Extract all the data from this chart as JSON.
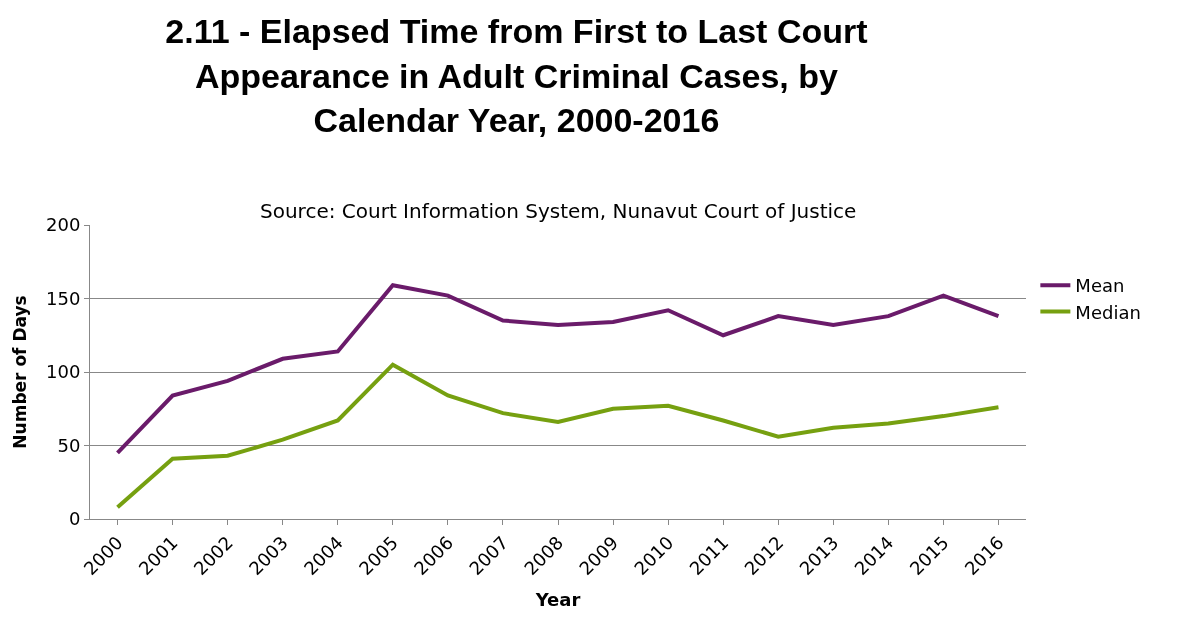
{
  "chart_data": {
    "type": "line",
    "title": "2.11 - Elapsed Time from First to Last Court Appearance in Adult Criminal Cases, by Calendar Year, 2000-2016",
    "annotations": [
      "Source: Court Information System, Nunavut Court of Justice"
    ],
    "xlabel": "Year",
    "ylabel": "Number of Days",
    "categories": [
      "2000",
      "2001",
      "2002",
      "2003",
      "2004",
      "2005",
      "2006",
      "2007",
      "2008",
      "2009",
      "2010",
      "2011",
      "2012",
      "2013",
      "2014",
      "2015",
      "2016"
    ],
    "series": [
      {
        "name": "Mean",
        "color": "#6a1b6a",
        "values": [
          45,
          84,
          94,
          109,
          114,
          159,
          152,
          135,
          132,
          134,
          142,
          125,
          138,
          132,
          138,
          152,
          138
        ]
      },
      {
        "name": "Median",
        "color": "#76a010",
        "values": [
          8,
          41,
          43,
          54,
          67,
          105,
          84,
          72,
          66,
          75,
          77,
          67,
          56,
          62,
          65,
          70,
          76
        ]
      }
    ],
    "ylim": [
      0,
      200
    ],
    "yticks": [
      0,
      50,
      100,
      150,
      200
    ],
    "grid": "y",
    "legend": "right",
    "marker": "none",
    "line_style": "solid"
  }
}
